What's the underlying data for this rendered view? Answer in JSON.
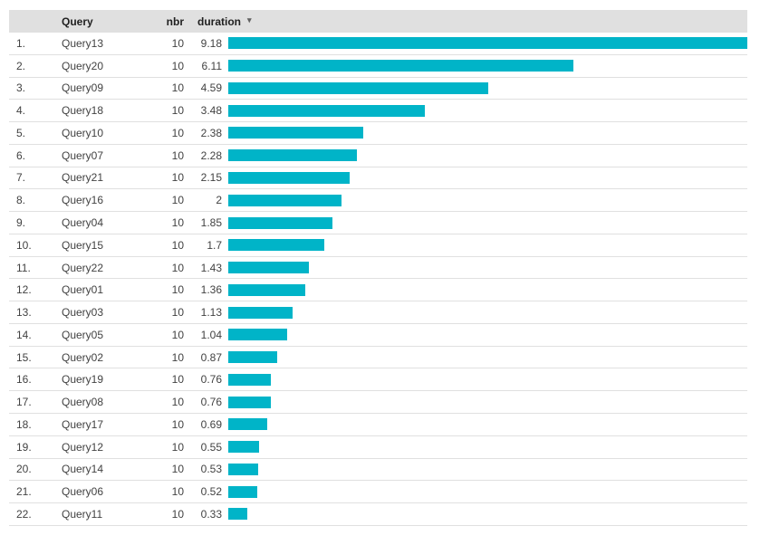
{
  "colors": {
    "bar": "#00b4c8",
    "header_bg": "#e0e0e0",
    "header_text": "#212121",
    "body_text": "#424242",
    "separator": "#e0e0e0"
  },
  "table": {
    "columns": {
      "index": "",
      "query": "Query",
      "nbr": "nbr",
      "duration": "duration"
    },
    "sort": {
      "column": "duration",
      "direction": "desc",
      "arrow_icon": "▾"
    },
    "rows": [
      {
        "rank": "1.",
        "query": "Query13",
        "nbr": "10",
        "duration": "9.18",
        "value": 9.18
      },
      {
        "rank": "2.",
        "query": "Query20",
        "nbr": "10",
        "duration": "6.11",
        "value": 6.11
      },
      {
        "rank": "3.",
        "query": "Query09",
        "nbr": "10",
        "duration": "4.59",
        "value": 4.59
      },
      {
        "rank": "4.",
        "query": "Query18",
        "nbr": "10",
        "duration": "3.48",
        "value": 3.48
      },
      {
        "rank": "5.",
        "query": "Query10",
        "nbr": "10",
        "duration": "2.38",
        "value": 2.38
      },
      {
        "rank": "6.",
        "query": "Query07",
        "nbr": "10",
        "duration": "2.28",
        "value": 2.28
      },
      {
        "rank": "7.",
        "query": "Query21",
        "nbr": "10",
        "duration": "2.15",
        "value": 2.15
      },
      {
        "rank": "8.",
        "query": "Query16",
        "nbr": "10",
        "duration": "2",
        "value": 2
      },
      {
        "rank": "9.",
        "query": "Query04",
        "nbr": "10",
        "duration": "1.85",
        "value": 1.85
      },
      {
        "rank": "10.",
        "query": "Query15",
        "nbr": "10",
        "duration": "1.7",
        "value": 1.7
      },
      {
        "rank": "11.",
        "query": "Query22",
        "nbr": "10",
        "duration": "1.43",
        "value": 1.43
      },
      {
        "rank": "12.",
        "query": "Query01",
        "nbr": "10",
        "duration": "1.36",
        "value": 1.36
      },
      {
        "rank": "13.",
        "query": "Query03",
        "nbr": "10",
        "duration": "1.13",
        "value": 1.13
      },
      {
        "rank": "14.",
        "query": "Query05",
        "nbr": "10",
        "duration": "1.04",
        "value": 1.04
      },
      {
        "rank": "15.",
        "query": "Query02",
        "nbr": "10",
        "duration": "0.87",
        "value": 0.87
      },
      {
        "rank": "16.",
        "query": "Query19",
        "nbr": "10",
        "duration": "0.76",
        "value": 0.76
      },
      {
        "rank": "17.",
        "query": "Query08",
        "nbr": "10",
        "duration": "0.76",
        "value": 0.76
      },
      {
        "rank": "18.",
        "query": "Query17",
        "nbr": "10",
        "duration": "0.69",
        "value": 0.69
      },
      {
        "rank": "19.",
        "query": "Query12",
        "nbr": "10",
        "duration": "0.55",
        "value": 0.55
      },
      {
        "rank": "20.",
        "query": "Query14",
        "nbr": "10",
        "duration": "0.53",
        "value": 0.53
      },
      {
        "rank": "21.",
        "query": "Query06",
        "nbr": "10",
        "duration": "0.52",
        "value": 0.52
      },
      {
        "rank": "22.",
        "query": "Query11",
        "nbr": "10",
        "duration": "0.33",
        "value": 0.33
      }
    ]
  },
  "chart_data": {
    "type": "bar",
    "orientation": "horizontal",
    "title": "",
    "xlabel": "duration",
    "ylabel": "Query",
    "categories": [
      "Query13",
      "Query20",
      "Query09",
      "Query18",
      "Query10",
      "Query07",
      "Query21",
      "Query16",
      "Query04",
      "Query15",
      "Query22",
      "Query01",
      "Query03",
      "Query05",
      "Query02",
      "Query19",
      "Query08",
      "Query17",
      "Query12",
      "Query14",
      "Query06",
      "Query11"
    ],
    "series": [
      {
        "name": "nbr",
        "values": [
          10,
          10,
          10,
          10,
          10,
          10,
          10,
          10,
          10,
          10,
          10,
          10,
          10,
          10,
          10,
          10,
          10,
          10,
          10,
          10,
          10,
          10
        ]
      },
      {
        "name": "duration",
        "values": [
          9.18,
          6.11,
          4.59,
          3.48,
          2.38,
          2.28,
          2.15,
          2,
          1.85,
          1.7,
          1.43,
          1.36,
          1.13,
          1.04,
          0.87,
          0.76,
          0.76,
          0.69,
          0.55,
          0.53,
          0.52,
          0.33
        ]
      }
    ],
    "xlim": [
      0,
      9.18
    ],
    "grid": false,
    "legend_position": "none",
    "sort": "duration descending",
    "bar_color": "#00b4c8"
  }
}
